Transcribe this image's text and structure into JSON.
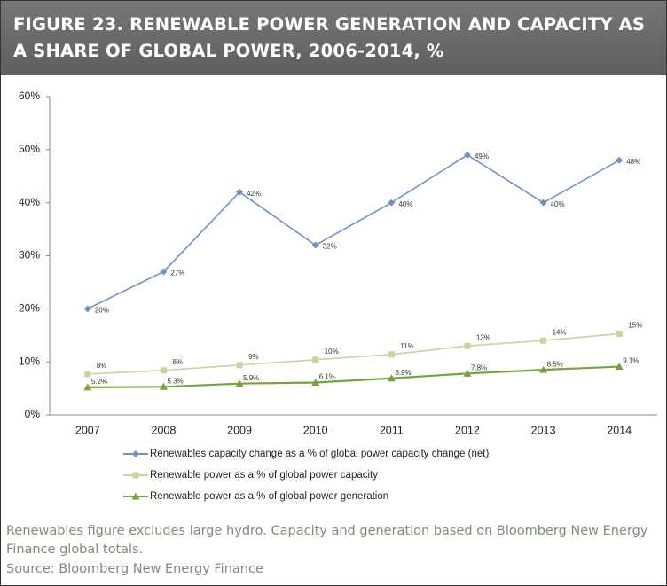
{
  "chart_data": {
    "type": "line",
    "title": "FIGURE 23. RENEWABLE POWER GENERATION AND CAPACITY AS A SHARE OF GLOBAL POWER, 2006-2014, %",
    "categories": [
      "2007",
      "2008",
      "2009",
      "2010",
      "2011",
      "2012",
      "2013",
      "2014"
    ],
    "series": [
      {
        "name": "Renewables capacity change as a % of global power capacity change (net)",
        "color": "#7090cc",
        "marker": "diamond",
        "values": [
          20,
          27,
          42,
          32,
          40,
          49,
          40,
          48
        ],
        "value_labels": [
          "20%",
          "27%",
          "42%",
          "32%",
          "40%",
          "49%",
          "40%",
          "48%"
        ]
      },
      {
        "name": "Renewable power as a % of global power capacity",
        "color": "#c3d69b",
        "marker": "square",
        "values": [
          7.7,
          8.4,
          9.4,
          10.4,
          11.4,
          13,
          14,
          15.3
        ],
        "value_labels": [
          "8%",
          "8%",
          "9%",
          "10%",
          "11%",
          "13%",
          "14%",
          "15%"
        ]
      },
      {
        "name": "Renewable power as a % of global power generation",
        "color": "#78a33c",
        "marker": "triangle",
        "values": [
          5.2,
          5.3,
          5.9,
          6.1,
          6.9,
          7.8,
          8.5,
          9.1
        ],
        "value_labels": [
          "5.2%",
          "5.3%",
          "5.9%",
          "6.1%",
          "6.9%",
          "7.8%",
          "8.5%",
          "9.1%"
        ]
      }
    ],
    "ylim": [
      0,
      60
    ],
    "yticks": [
      {
        "value": 0,
        "label": "0%"
      },
      {
        "value": 10,
        "label": "10%"
      },
      {
        "value": 20,
        "label": "20%"
      },
      {
        "value": 30,
        "label": "30%"
      },
      {
        "value": 40,
        "label": "40%"
      },
      {
        "value": 50,
        "label": "50%"
      },
      {
        "value": 60,
        "label": "60%"
      }
    ],
    "legend": "bottom",
    "note": "Renewables figure excludes large hydro. Capacity and generation based on Bloomberg New Energy Finance global totals.",
    "source": "Source: Bloomberg New Energy Finance"
  }
}
